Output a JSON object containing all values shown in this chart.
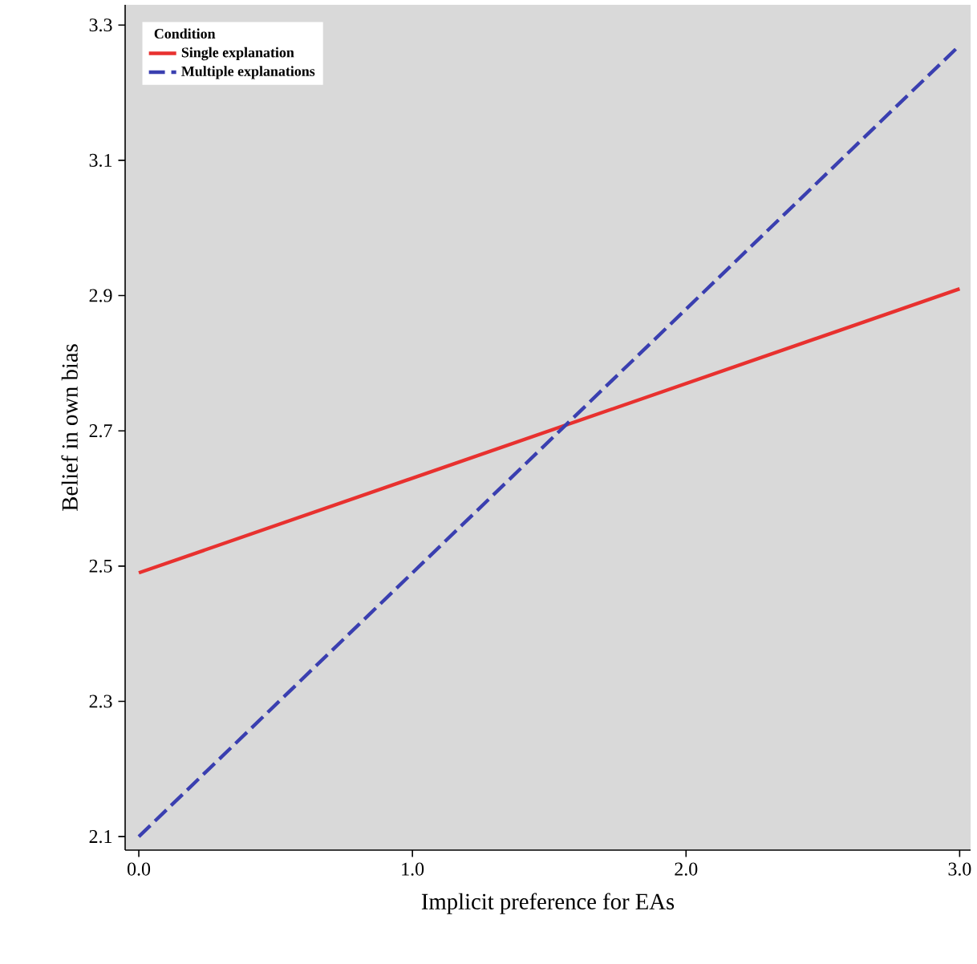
{
  "chart_data": {
    "type": "line",
    "xlabel": "Implicit preference for EAs",
    "ylabel": "Belief in own bias",
    "legend_title": "Condition",
    "legend": "top left",
    "x": [
      0,
      3
    ],
    "series": [
      {
        "name": "Single explanation",
        "color": "#e8312f",
        "line_style": "solid",
        "values": [
          2.49,
          2.91
        ]
      },
      {
        "name": "Multiple explanations",
        "color": "#3a3fb0",
        "line_style": "dashed",
        "values": [
          2.1,
          3.27
        ]
      }
    ],
    "xlim": [
      -0.05,
      3.04
    ],
    "ylim": [
      2.08,
      3.33
    ],
    "xticks": [
      {
        "value": 0,
        "label": "0.0"
      },
      {
        "value": 1,
        "label": "1.0"
      },
      {
        "value": 2,
        "label": "2.0"
      },
      {
        "value": 3,
        "label": "3.0"
      }
    ],
    "yticks": [
      2.1,
      2.3,
      2.5,
      2.7,
      2.9,
      3.1,
      3.3
    ],
    "grid": false,
    "marker": "none"
  }
}
